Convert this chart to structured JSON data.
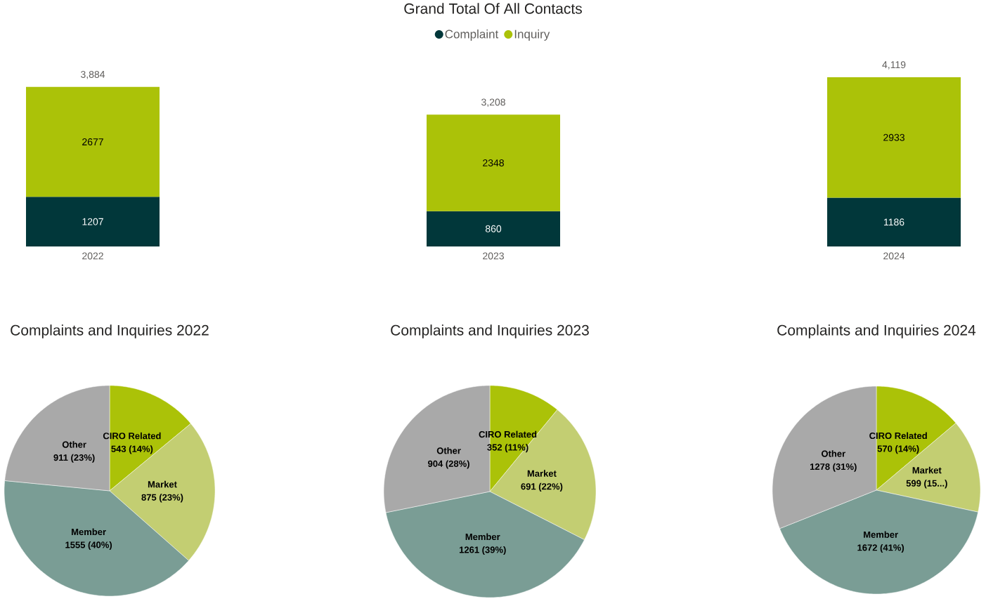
{
  "chart_data": [
    {
      "type": "bar",
      "title": "Grand Total Of All Contacts",
      "categories": [
        "2022",
        "2023",
        "2024"
      ],
      "stacked": true,
      "legend": "top",
      "data_labels": true,
      "tick_labels": "x",
      "series": [
        {
          "name": "Complaint",
          "color": "#01373A",
          "values": [
            1207,
            860,
            1186
          ]
        },
        {
          "name": "Inquiry",
          "color": "#ABC208",
          "values": [
            2677,
            2348,
            2933
          ]
        }
      ],
      "totals": [
        "3,884",
        "3,208",
        "4,119"
      ]
    },
    {
      "type": "pie",
      "title": "Complaints and Inquiries 2022",
      "categories": [
        "CIRO Related",
        "Market",
        "Member",
        "Other"
      ],
      "values": [
        543,
        875,
        1555,
        911
      ],
      "colors": [
        "#ABC208",
        "#C3CE72",
        "#7A9D95",
        "#A9A9A9"
      ],
      "value_labels": [
        "543 (14%)",
        "875 (23%)",
        "1555 (40%)",
        "911 (23%)"
      ]
    },
    {
      "type": "pie",
      "title": "Complaints and Inquiries 2023",
      "categories": [
        "CIRO Related",
        "Market",
        "Member",
        "Other"
      ],
      "values": [
        352,
        691,
        1261,
        904
      ],
      "colors": [
        "#ABC208",
        "#C3CE72",
        "#7A9D95",
        "#A9A9A9"
      ],
      "value_labels": [
        "352 (11%)",
        "691 (22%)",
        "1261 (39%)",
        "904 (28%)"
      ]
    },
    {
      "type": "pie",
      "title": "Complaints and Inquiries 2024",
      "categories": [
        "CIRO Related",
        "Market",
        "Member",
        "Other"
      ],
      "values": [
        570,
        599,
        1672,
        1278
      ],
      "colors": [
        "#ABC208",
        "#C3CE72",
        "#7A9D95",
        "#A9A9A9"
      ],
      "value_labels": [
        "570 (14%)",
        "599 (15...)",
        "1672 (41%)",
        "1278 (31%)"
      ]
    }
  ]
}
